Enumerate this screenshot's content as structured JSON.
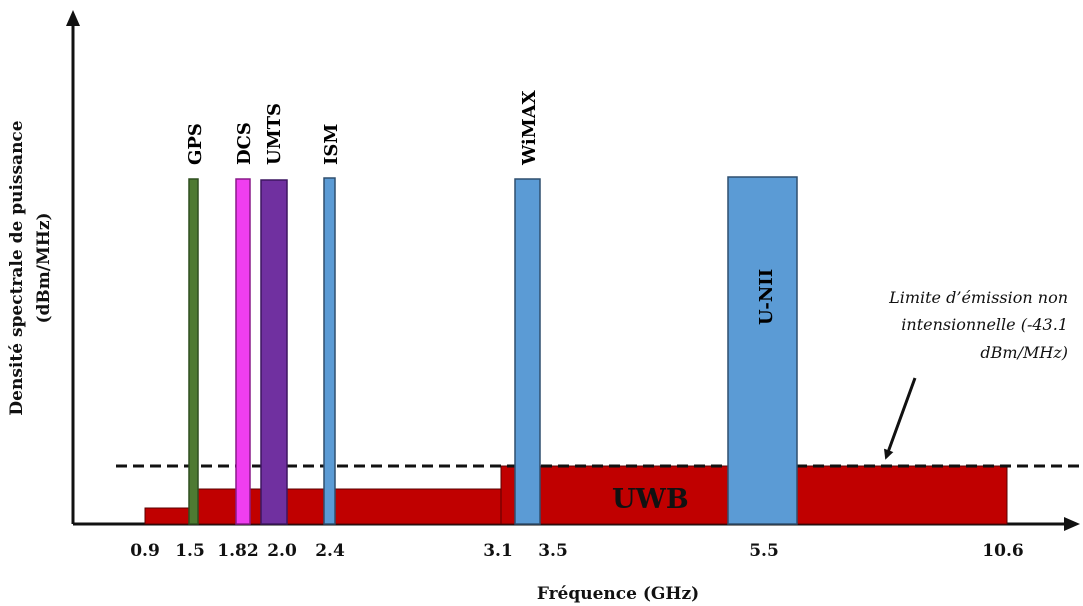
{
  "diagram": {
    "x_axis_title": "Fréquence (GHz)",
    "y_axis_title_line1": "Densité spectrale de puissance",
    "y_axis_title_line2": "(dBm/MHz)",
    "tick_labels": [
      "0.9",
      "1.5",
      "1.82",
      "2.0",
      "2.4",
      "3.1",
      "3.5",
      "5.5",
      "10.6"
    ],
    "uwb_label": "UWB",
    "limit_annotation": [
      "Limite d’émission non",
      "intensionnelle (-43.1",
      "dBm/MHz)"
    ],
    "colors": {
      "uwb": "#C00000",
      "gps": "#4E7A32",
      "dcs": "#F03EF0",
      "umts": "#7030A0",
      "blue_band": "#5B9BD5",
      "outline": "#2F4F6F"
    },
    "bands": [
      {
        "id": "gps",
        "label": "GPS",
        "color": "#4E7A32"
      },
      {
        "id": "dcs",
        "label": "DCS",
        "color": "#F03EF0"
      },
      {
        "id": "umts",
        "label": "UMTS",
        "color": "#7030A0"
      },
      {
        "id": "ism",
        "label": "ISM",
        "color": "#5B9BD5"
      },
      {
        "id": "wimax",
        "label": "WiMAX",
        "color": "#5B9BD5"
      },
      {
        "id": "unii",
        "label": "U-NII",
        "color": "#5B9BD5"
      }
    ]
  }
}
